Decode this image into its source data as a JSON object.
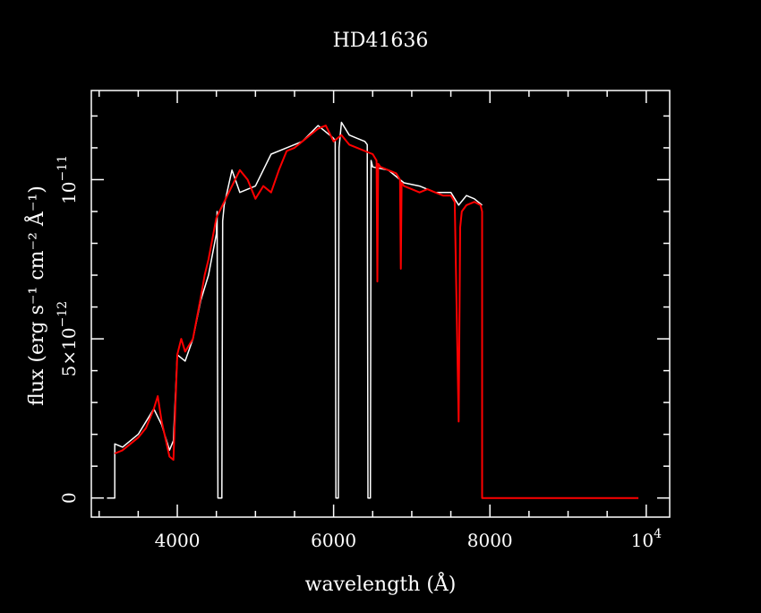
{
  "chart_data": {
    "type": "line",
    "title": "HD41636",
    "xlabel": "wavelength (Å)",
    "ylabel": "flux (erg s⁻¹ cm⁻² Å⁻¹)",
    "xlim": [
      2900,
      10300
    ],
    "ylim": [
      -6e-13,
      1.28e-11
    ],
    "x_ticks": [
      {
        "value": 4000,
        "label": "4000"
      },
      {
        "value": 6000,
        "label": "6000"
      },
      {
        "value": 8000,
        "label": "8000"
      },
      {
        "value": 10000,
        "label": "10",
        "exponent": "4"
      }
    ],
    "y_ticks": [
      {
        "value": 0,
        "label": "0"
      },
      {
        "value": 5e-12,
        "label": "5×10",
        "exponent": "−12"
      },
      {
        "value": 1e-11,
        "label": "10",
        "exponent": "−11"
      }
    ],
    "colors": {
      "background": "#000000",
      "axes": "#ffffff",
      "series_white": "#ffffff",
      "series_red": "#ff0000"
    },
    "series": [
      {
        "color": "#ffffff",
        "x": [
          3100,
          3200,
          3200,
          3300,
          3500,
          3700,
          3800,
          3900,
          3950,
          4000,
          4100,
          4200,
          4300,
          4400,
          4500,
          4510,
          4520,
          4570,
          4580,
          4600,
          4700,
          4800,
          5000,
          5200,
          5400,
          5600,
          5800,
          5900,
          6000,
          6020,
          6030,
          6060,
          6070,
          6100,
          6200,
          6300,
          6400,
          6430,
          6440,
          6470,
          6480,
          6500,
          6700,
          6900,
          7100,
          7300,
          7500,
          7600,
          7700,
          7800,
          7850,
          7900
        ],
        "y": [
          0,
          0,
          1.7e-12,
          1.6e-12,
          2e-12,
          2.8e-12,
          2.3e-12,
          1.5e-12,
          1.8e-12,
          4.5e-12,
          4.3e-12,
          5e-12,
          6.2e-12,
          7e-12,
          8.3e-12,
          9e-12,
          0,
          0,
          8.7e-12,
          9.2e-12,
          1.03e-11,
          9.6e-12,
          9.8e-12,
          1.08e-11,
          1.1e-11,
          1.12e-11,
          1.17e-11,
          1.15e-11,
          1.13e-11,
          1.12e-11,
          0,
          0,
          1.1e-11,
          1.18e-11,
          1.14e-11,
          1.13e-11,
          1.12e-11,
          1.11e-11,
          0,
          0,
          1.06e-11,
          1.04e-11,
          1.03e-11,
          9.9e-12,
          9.8e-12,
          9.6e-12,
          9.6e-12,
          9.2e-12,
          9.5e-12,
          9.4e-12,
          9.3e-12,
          9.2e-12
        ]
      },
      {
        "color": "#ff0000",
        "x": [
          3200,
          3300,
          3400,
          3500,
          3600,
          3700,
          3750,
          3800,
          3900,
          3950,
          4000,
          4050,
          4100,
          4200,
          4300,
          4350,
          4400,
          4500,
          4600,
          4700,
          4800,
          4900,
          5000,
          5100,
          5200,
          5300,
          5400,
          5500,
          5600,
          5700,
          5800,
          5900,
          6000,
          6100,
          6200,
          6300,
          6400,
          6500,
          6550,
          6560,
          6570,
          6600,
          6700,
          6800,
          6850,
          6860,
          6870,
          6900,
          7000,
          7100,
          7200,
          7300,
          7400,
          7500,
          7550,
          7600,
          7620,
          7640,
          7700,
          7800,
          7880,
          7900,
          7900,
          8500,
          9000,
          9500,
          9900
        ],
        "y": [
          1.4e-12,
          1.5e-12,
          1.7e-12,
          1.9e-12,
          2.2e-12,
          2.8e-12,
          3.2e-12,
          2.4e-12,
          1.3e-12,
          1.2e-12,
          4.5e-12,
          5e-12,
          4.6e-12,
          5e-12,
          6.3e-12,
          7e-12,
          7.5e-12,
          8.8e-12,
          9.3e-12,
          9.8e-12,
          1.03e-11,
          1e-11,
          9.4e-12,
          9.8e-12,
          9.6e-12,
          1.03e-11,
          1.09e-11,
          1.1e-11,
          1.12e-11,
          1.14e-11,
          1.16e-11,
          1.17e-11,
          1.12e-11,
          1.14e-11,
          1.11e-11,
          1.1e-11,
          1.09e-11,
          1.08e-11,
          1.06e-11,
          6.8e-12,
          1.05e-11,
          1.04e-11,
          1.03e-11,
          1.02e-11,
          1e-11,
          7.2e-12,
          9.9e-12,
          9.8e-12,
          9.7e-12,
          9.6e-12,
          9.7e-12,
          9.6e-12,
          9.5e-12,
          9.5e-12,
          9.3e-12,
          2.4e-12,
          8.5e-12,
          9e-12,
          9.2e-12,
          9.3e-12,
          9.2e-12,
          9e-12,
          0,
          0,
          0,
          0,
          0
        ]
      }
    ]
  }
}
